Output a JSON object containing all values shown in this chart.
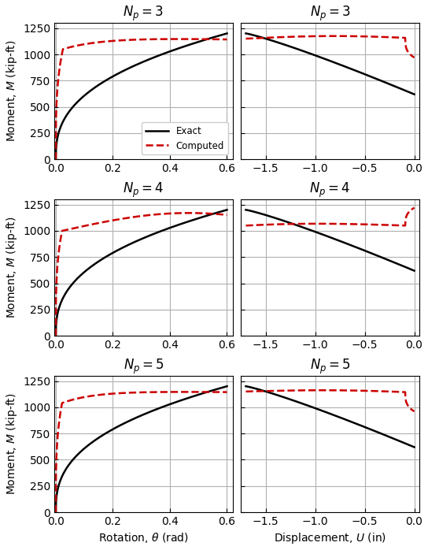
{
  "titles_left": [
    "$N_p = 3$",
    "$N_p = 4$",
    "$N_p = 5$"
  ],
  "titles_right": [
    "$N_p = 3$",
    "$N_p = 4$",
    "$N_p = 5$"
  ],
  "xlabel_left": "Rotation, $\\theta$ (rad)",
  "xlabel_right": "Displacement, $U$ (in)",
  "ylabel": "Moment, $M$ (kip-ft)",
  "ylim": [
    0,
    1300
  ],
  "yticks": [
    0,
    250,
    500,
    750,
    1000,
    1250
  ],
  "xlim_left": [
    -0.005,
    0.62
  ],
  "xticks_left": [
    0.0,
    0.2,
    0.4,
    0.6
  ],
  "xlim_right": [
    -1.75,
    0.05
  ],
  "xticks_right": [
    -1.5,
    -1.0,
    -0.5,
    0.0
  ],
  "exact_color": "#000000",
  "computed_color": "#cc0000",
  "exact_lw": 1.8,
  "computed_lw": 1.8,
  "computed_ls": "--",
  "grid_color": "#b0b0b0",
  "grid_lw": 0.8,
  "figsize": [
    5.44,
    6.98
  ],
  "dpi": 100
}
